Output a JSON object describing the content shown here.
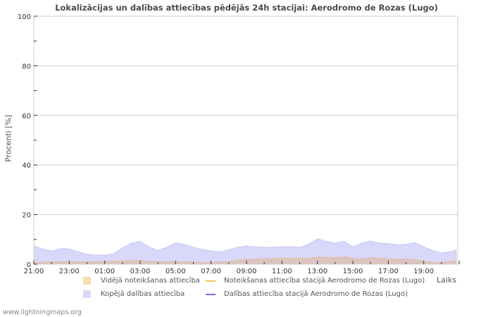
{
  "title": "Lokalizācijas un dalības attiecības pēdējās 24h stacijai: Aerodromo de Rozas (Lugo)",
  "footer": "www.lightningmaps.org",
  "legend": {
    "avg_detection": "Vidējā noteikšanas attiecība",
    "station_detection": "Noteikšanas attiecība stacijā Aerodromo de Rozas (Lugo)",
    "total_participation": "Kopējā dalības attiecība",
    "station_participation": "Dalības attiecība stacijā Aerodromo de Rozas (Lugo)"
  },
  "colors": {
    "avg_detection": "#f9dfa8",
    "station_detection": "#f5c74d",
    "total_participation": "#d8d8fa",
    "station_participation": "#7070e0",
    "grid": "#cccccc"
  },
  "chart_data": {
    "type": "area",
    "title": "Lokalizācijas un dalības attiecības pēdējās 24h stacijai: Aerodromo de Rozas (Lugo)",
    "xlabel": "Laiks",
    "ylabel": "Procenti   [%]",
    "ylim": [
      0,
      100
    ],
    "yticks": [
      0,
      20,
      40,
      60,
      80,
      100
    ],
    "xticks": [
      "21:00",
      "23:00",
      "01:00",
      "03:00",
      "05:00",
      "07:00",
      "09:00",
      "11:00",
      "13:00",
      "15:00",
      "17:00",
      "19:00"
    ],
    "grid": true,
    "legend_position": "bottom",
    "x": [
      "21:00",
      "21:30",
      "22:00",
      "22:30",
      "23:00",
      "23:30",
      "00:00",
      "00:30",
      "01:00",
      "01:30",
      "02:00",
      "02:30",
      "03:00",
      "03:30",
      "04:00",
      "04:30",
      "05:00",
      "05:30",
      "06:00",
      "06:30",
      "07:00",
      "07:30",
      "08:00",
      "08:30",
      "09:00",
      "09:30",
      "10:00",
      "10:30",
      "11:00",
      "11:30",
      "12:00",
      "12:30",
      "13:00",
      "13:30",
      "14:00",
      "14:30",
      "15:00",
      "15:30",
      "16:00",
      "16:30",
      "17:00",
      "17:30",
      "18:00",
      "18:30",
      "19:00",
      "19:30",
      "20:00",
      "20:30",
      "20:50"
    ],
    "series": [
      {
        "name": "Kopējā dalības attiecība",
        "type": "area",
        "values": [
          7.4,
          6.0,
          5.3,
          6.3,
          6.2,
          5.0,
          4.0,
          3.6,
          3.7,
          4.2,
          6.5,
          8.5,
          9.2,
          7.0,
          5.5,
          6.8,
          8.6,
          8.0,
          6.8,
          6.0,
          5.3,
          5.0,
          5.8,
          6.8,
          7.3,
          7.0,
          6.8,
          6.8,
          7.0,
          7.0,
          6.8,
          8.0,
          10.2,
          9.2,
          8.5,
          9.2,
          7.0,
          8.5,
          9.3,
          8.5,
          8.3,
          7.8,
          8.0,
          8.7,
          7.0,
          5.5,
          4.5,
          5.0,
          5.7
        ]
      },
      {
        "name": "Vidējā noteikšanas attiecība",
        "type": "area",
        "values": [
          0.5,
          0.8,
          0.9,
          0.9,
          1.0,
          1.0,
          0.9,
          1.0,
          1.1,
          1.2,
          1.2,
          1.5,
          1.5,
          1.2,
          1.0,
          1.0,
          1.0,
          1.0,
          0.9,
          0.6,
          0.6,
          0.9,
          1.0,
          1.5,
          2.0,
          2.0,
          2.2,
          2.3,
          2.4,
          2.4,
          2.3,
          2.3,
          2.8,
          2.7,
          2.6,
          3.0,
          2.3,
          2.0,
          2.6,
          2.4,
          2.1,
          2.0,
          2.0,
          1.8,
          1.2,
          0.8,
          0.6,
          1.0,
          1.4
        ]
      },
      {
        "name": "Noteikšanas attiecība stacijā Aerodromo de Rozas (Lugo)",
        "type": "line",
        "values": []
      },
      {
        "name": "Dalības attiecība stacijā Aerodromo de Rozas (Lugo)",
        "type": "line",
        "values": []
      }
    ]
  }
}
